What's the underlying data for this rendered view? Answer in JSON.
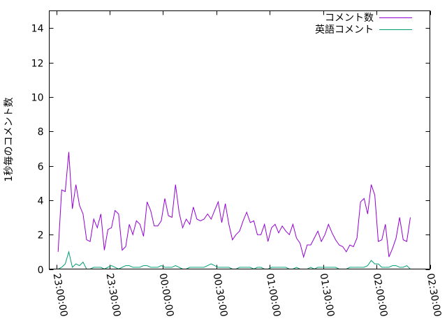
{
  "chart_data": {
    "type": "line",
    "title": "",
    "xlabel": "",
    "ylabel": "1秒毎のコメント数",
    "xlim": [
      "22:56:00",
      "02:30:00"
    ],
    "ylim": [
      0,
      15
    ],
    "yticks": [
      0,
      2,
      4,
      6,
      8,
      10,
      12,
      14
    ],
    "xticks": [
      "23:00:00",
      "23:30:00",
      "00:00:00",
      "00:30:00",
      "01:00:00",
      "01:30:00",
      "02:00:00",
      "02:30:00"
    ],
    "grid": false,
    "legend_position": "top-right",
    "x_start": "23:01:00",
    "x_step_minutes": 2,
    "series": [
      {
        "name": "コメント数",
        "color": "#9400d3",
        "values": [
          1.0,
          4.6,
          4.5,
          6.8,
          3.5,
          4.9,
          3.7,
          3.2,
          1.7,
          1.6,
          2.9,
          2.4,
          3.2,
          1.1,
          2.3,
          2.4,
          3.4,
          3.2,
          1.1,
          1.3,
          2.6,
          2.0,
          2.8,
          2.6,
          1.9,
          3.9,
          3.4,
          2.5,
          2.5,
          2.8,
          4.1,
          3.1,
          3.0,
          4.9,
          3.3,
          2.4,
          2.9,
          2.6,
          3.6,
          2.9,
          2.8,
          2.9,
          3.2,
          2.9,
          3.4,
          3.9,
          2.7,
          3.8,
          2.6,
          1.7,
          2.0,
          2.2,
          2.8,
          3.3,
          2.7,
          2.8,
          2.0,
          2.0,
          2.6,
          1.6,
          2.4,
          2.6,
          2.1,
          2.5,
          2.2,
          2.0,
          2.6,
          1.8,
          1.5,
          0.7,
          1.4,
          1.4,
          1.8,
          2.2,
          1.6,
          2.0,
          2.6,
          2.1,
          1.7,
          1.4,
          1.3,
          1.0,
          1.4,
          1.3,
          1.8,
          3.9,
          4.1,
          3.2,
          4.9,
          4.3,
          1.6,
          1.7,
          2.6,
          0.7,
          1.2,
          1.8,
          3.0,
          1.7,
          1.6,
          3.0
        ]
      },
      {
        "name": "英語コメント",
        "color": "#009e73",
        "values": [
          0.0,
          0.1,
          0.3,
          1.0,
          0.1,
          0.3,
          0.2,
          0.4,
          0.0,
          0.0,
          0.1,
          0.1,
          0.1,
          0.0,
          0.1,
          0.2,
          0.1,
          0.0,
          0.1,
          0.2,
          0.2,
          0.1,
          0.1,
          0.1,
          0.2,
          0.2,
          0.1,
          0.1,
          0.1,
          0.2,
          0.1,
          0.1,
          0.1,
          0.2,
          0.1,
          0.0,
          0.0,
          0.1,
          0.1,
          0.1,
          0.1,
          0.1,
          0.2,
          0.3,
          0.2,
          0.1,
          0.1,
          0.1,
          0.1,
          0.0,
          0.0,
          0.1,
          0.1,
          0.1,
          0.1,
          0.0,
          0.1,
          0.1,
          0.0,
          0.0,
          0.1,
          0.1,
          0.1,
          0.1,
          0.1,
          0.0,
          0.0,
          0.1,
          0.0,
          0.0,
          0.0,
          0.1,
          0.0,
          0.1,
          0.1,
          0.1,
          0.1,
          0.1,
          0.1,
          0.0,
          0.0,
          0.0,
          0.1,
          0.1,
          0.1,
          0.1,
          0.1,
          0.2,
          0.5,
          0.3,
          0.3,
          0.1,
          0.1,
          0.1,
          0.2,
          0.2,
          0.1,
          0.1,
          0.2,
          0.0
        ]
      }
    ]
  }
}
